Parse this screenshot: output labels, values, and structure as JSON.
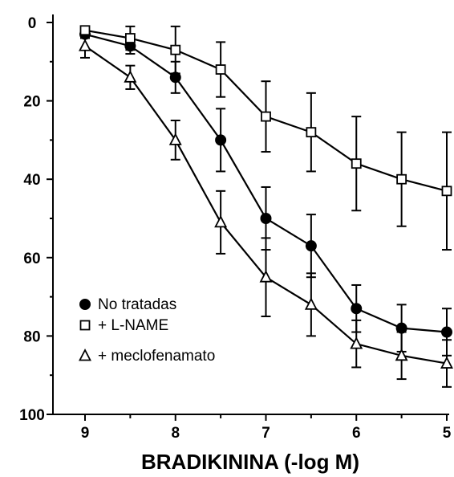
{
  "chart_data": {
    "type": "line",
    "title": "",
    "xlabel": "BRADIKININA (-log M)",
    "ylabel": "",
    "xlim": [
      9,
      5
    ],
    "ylim": [
      0,
      100
    ],
    "y_inverted": true,
    "x_ticks": [
      "9",
      "8",
      "7",
      "6",
      "5"
    ],
    "x_tick_values": [
      9,
      8,
      7,
      6,
      5
    ],
    "y_ticks": [
      "0",
      "20",
      "40",
      "60",
      "80",
      "100"
    ],
    "y_tick_values": [
      0,
      20,
      40,
      60,
      80,
      100
    ],
    "grid": false,
    "legend_position": "bottom-left",
    "x": [
      9,
      8.5,
      8,
      7.5,
      7,
      6.5,
      6,
      5.5,
      5
    ],
    "series": [
      {
        "name": "No tratadas",
        "marker": "filled-circle",
        "values": [
          3,
          6,
          14,
          30,
          50,
          57,
          73,
          78,
          79
        ],
        "error": [
          1,
          2,
          4,
          8,
          8,
          8,
          6,
          6,
          6
        ]
      },
      {
        "name": "+ L-NAME",
        "marker": "open-square",
        "values": [
          2,
          4,
          7,
          12,
          24,
          28,
          36,
          40,
          43
        ],
        "error": [
          1,
          3,
          6,
          7,
          9,
          10,
          12,
          12,
          15
        ]
      },
      {
        "name": "+ meclofenamato",
        "marker": "open-triangle",
        "values": [
          6,
          14,
          30,
          51,
          65,
          72,
          82,
          85,
          87
        ],
        "error": [
          3,
          3,
          5,
          8,
          10,
          8,
          6,
          6,
          6
        ]
      }
    ]
  }
}
